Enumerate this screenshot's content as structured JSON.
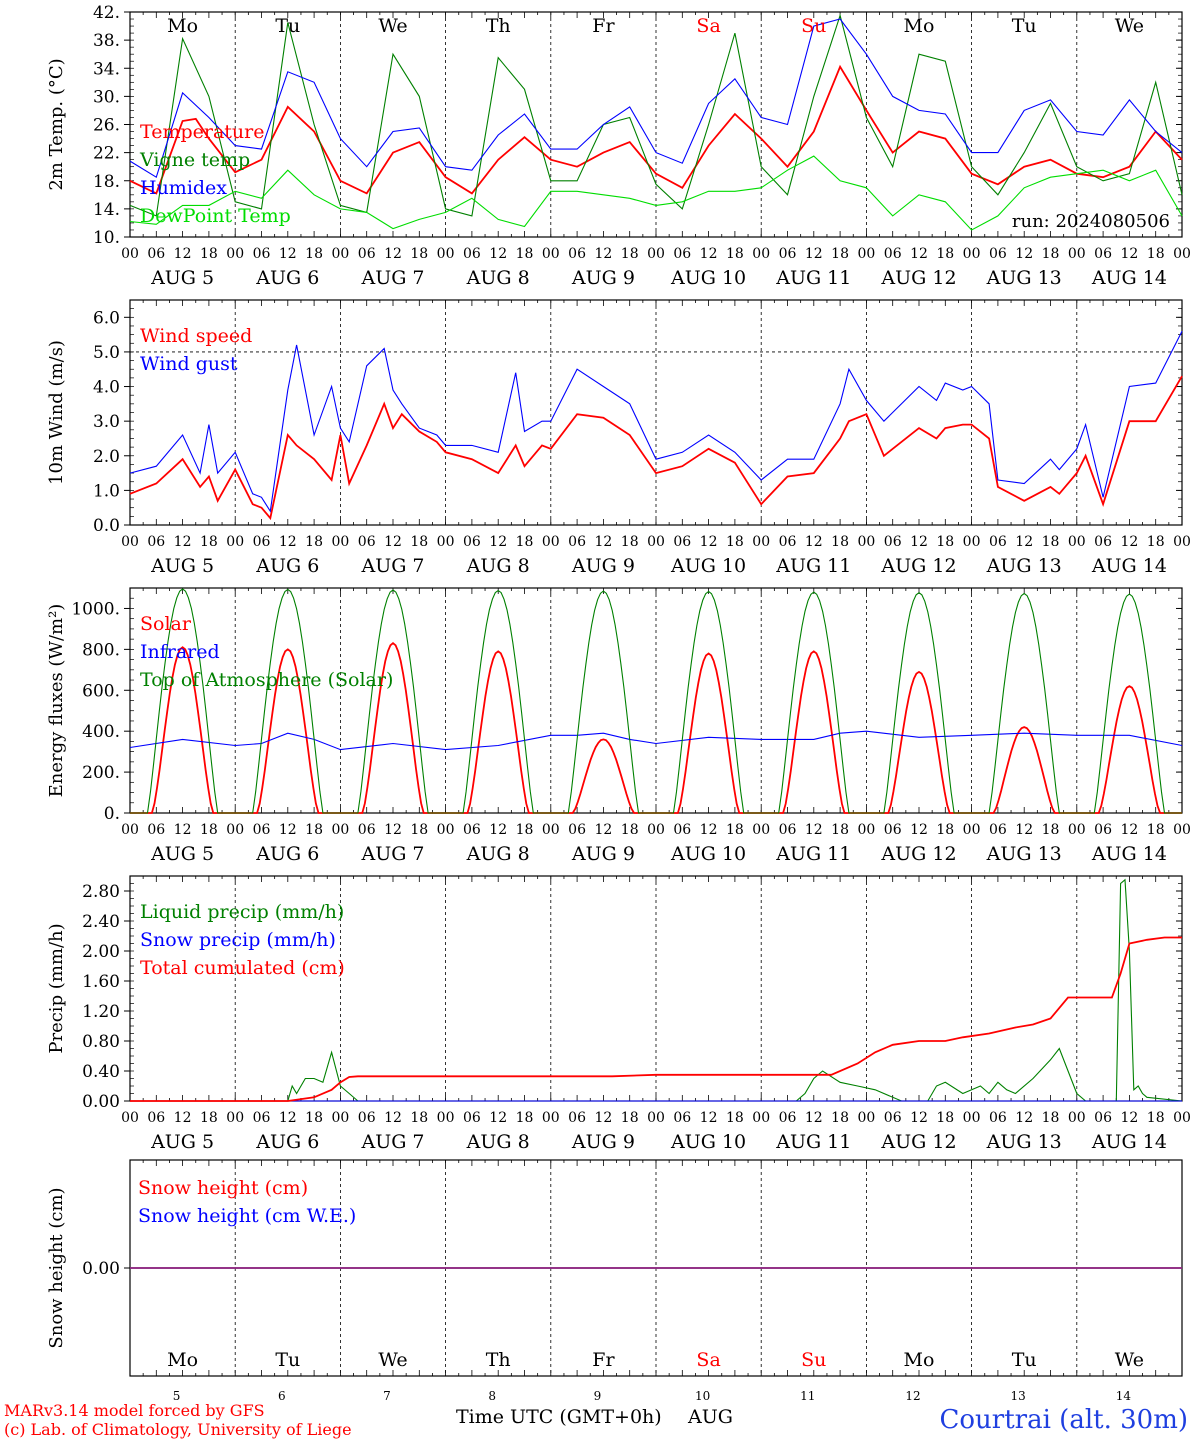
{
  "footer": {
    "model": "MARv3.14 model forced by GFS",
    "copyright": "(c) Lab. of Climatology, University of Liege",
    "xlabel": "Time UTC (GMT+0h)",
    "month": "AUG",
    "station": "Courtrai (alt. 30m)"
  },
  "colors": {
    "red": "#ff0000",
    "green": "#008000",
    "blue": "#0000ff",
    "lime": "#00dd00",
    "purple": "#7030a0",
    "station": "#1f3fe0"
  },
  "days": [
    "Mo",
    "Tu",
    "We",
    "Th",
    "Fr",
    "Sa",
    "Su",
    "Mo",
    "Tu",
    "We"
  ],
  "day_colors": [
    "black",
    "black",
    "black",
    "black",
    "black",
    "red",
    "red",
    "black",
    "black",
    "black"
  ],
  "dates": [
    "AUG 5",
    "AUG 6",
    "AUG 7",
    "AUG 8",
    "AUG 9",
    "AUG 10",
    "AUG 11",
    "AUG 12",
    "AUG 13",
    "AUG 14"
  ],
  "date_numbers": [
    "5",
    "6",
    "7",
    "8",
    "9",
    "10",
    "11",
    "12",
    "13",
    "14"
  ],
  "hour_ticks": [
    "00",
    "06",
    "12",
    "18"
  ],
  "final_tick": "00",
  "chart_data": [
    {
      "type": "line",
      "ylabel": "2m Temp. (°C)",
      "ylim": [
        10,
        42
      ],
      "yticks": [
        "10.",
        "14.",
        "18.",
        "22.",
        "26.",
        "30.",
        "34.",
        "38.",
        "42."
      ],
      "run": "run: 2024080506",
      "x_hours": [
        0,
        240
      ],
      "legend_placement": "left",
      "series": [
        {
          "name": "Temperature",
          "color": "#ff0000",
          "x": [
            0,
            6,
            12,
            15,
            18,
            24,
            30,
            36,
            42,
            48,
            54,
            60,
            66,
            72,
            78,
            84,
            90,
            96,
            102,
            108,
            114,
            120,
            126,
            132,
            138,
            144,
            150,
            156,
            162,
            168,
            174,
            180,
            186,
            192,
            198,
            204,
            210,
            216,
            222,
            228,
            234,
            240
          ],
          "values": [
            18,
            16.2,
            26.5,
            26.8,
            24,
            19.2,
            21,
            28.5,
            25,
            18,
            16.2,
            22,
            23.5,
            18.5,
            16.2,
            21,
            24.2,
            21,
            20,
            22,
            23.5,
            19,
            17,
            23,
            27.5,
            24,
            20,
            25,
            34.2,
            28,
            22,
            25,
            24,
            19,
            17.5,
            20,
            21,
            19,
            18.5,
            20,
            25,
            21
          ]
        },
        {
          "name": "Vigne temp",
          "color": "#008000",
          "x": [
            0,
            6,
            12,
            18,
            24,
            30,
            36,
            42,
            48,
            54,
            60,
            66,
            72,
            78,
            84,
            90,
            96,
            102,
            108,
            114,
            120,
            126,
            132,
            138,
            144,
            150,
            156,
            162,
            168,
            174,
            180,
            186,
            192,
            198,
            204,
            210,
            216,
            222,
            228,
            234,
            240
          ],
          "values": [
            14.5,
            13,
            38.2,
            30,
            15,
            14,
            40.5,
            26,
            14.5,
            13.5,
            36,
            30,
            14,
            13,
            35.5,
            31,
            18,
            18,
            26,
            27,
            17.5,
            14,
            26,
            39,
            20,
            16,
            30,
            41.5,
            27,
            20,
            36,
            35,
            20,
            16,
            22,
            29,
            20,
            18,
            19,
            32,
            16
          ]
        },
        {
          "name": "Humidex",
          "color": "#0000ff",
          "x": [
            0,
            6,
            12,
            18,
            24,
            30,
            36,
            42,
            48,
            54,
            60,
            66,
            72,
            78,
            84,
            90,
            96,
            102,
            108,
            114,
            120,
            126,
            132,
            138,
            144,
            150,
            156,
            162,
            168,
            174,
            180,
            186,
            192,
            198,
            204,
            210,
            216,
            222,
            228,
            234,
            240
          ],
          "values": [
            20.8,
            18.5,
            30.5,
            27,
            23,
            22.5,
            33.5,
            32,
            24,
            20,
            25,
            25.5,
            20,
            19.5,
            24.5,
            27.5,
            22.5,
            22.5,
            26,
            28.5,
            22,
            20.5,
            29,
            32.5,
            27,
            26,
            40,
            41,
            36,
            30,
            28,
            27.5,
            22,
            22,
            28,
            29.5,
            25,
            24.5,
            29.5,
            25,
            22
          ]
        },
        {
          "name": "DewPoint Temp",
          "color": "#00dd00",
          "x": [
            0,
            6,
            12,
            18,
            24,
            30,
            36,
            42,
            48,
            54,
            60,
            66,
            72,
            78,
            84,
            90,
            96,
            102,
            108,
            114,
            120,
            126,
            132,
            138,
            144,
            150,
            156,
            162,
            168,
            174,
            180,
            186,
            192,
            198,
            204,
            210,
            216,
            222,
            228,
            234,
            240
          ],
          "values": [
            12.2,
            11.8,
            14.5,
            14.5,
            16.5,
            15.5,
            19.5,
            16,
            14,
            13.5,
            11.2,
            12.5,
            13.5,
            15.5,
            12.5,
            11.5,
            16.5,
            16.5,
            16,
            15.5,
            14.5,
            15,
            16.5,
            16.5,
            17,
            19.5,
            21.5,
            18,
            17,
            13,
            16,
            15,
            11,
            13,
            17,
            18.5,
            19,
            19.5,
            18,
            19.5,
            13
          ]
        }
      ]
    },
    {
      "type": "line",
      "ylabel": "10m Wind (m/s)",
      "ylim": [
        0,
        6.5
      ],
      "yticks": [
        "0.0",
        "1.0",
        "2.0",
        "3.0",
        "4.0",
        "5.0",
        "6.0"
      ],
      "reference_line": 5.0,
      "x_hours": [
        0,
        240
      ],
      "legend_placement": "top-left",
      "series": [
        {
          "name": "Wind speed",
          "color": "#ff0000",
          "x": [
            0,
            6,
            12,
            16,
            18,
            20,
            24,
            28,
            30,
            32,
            36,
            38,
            42,
            46,
            48,
            50,
            54,
            58,
            60,
            62,
            66,
            70,
            72,
            78,
            84,
            88,
            90,
            94,
            96,
            102,
            108,
            114,
            120,
            126,
            132,
            138,
            144,
            150,
            156,
            162,
            164,
            168,
            172,
            180,
            184,
            186,
            190,
            192,
            196,
            198,
            204,
            210,
            212,
            216,
            218,
            222,
            228,
            234,
            240
          ],
          "values": [
            0.9,
            1.2,
            1.9,
            1.1,
            1.4,
            0.7,
            1.6,
            0.6,
            0.5,
            0.2,
            2.6,
            2.3,
            1.9,
            1.3,
            2.6,
            1.2,
            2.3,
            3.5,
            2.8,
            3.2,
            2.7,
            2.4,
            2.1,
            1.9,
            1.5,
            2.3,
            1.7,
            2.3,
            2.2,
            3.2,
            3.1,
            2.6,
            1.5,
            1.7,
            2.2,
            1.8,
            0.6,
            1.4,
            1.5,
            2.5,
            3.0,
            3.2,
            2.0,
            2.8,
            2.5,
            2.8,
            2.9,
            2.9,
            2.5,
            1.1,
            0.7,
            1.1,
            0.9,
            1.5,
            2.0,
            0.6,
            3.0,
            3.0,
            4.3
          ]
        },
        {
          "name": "Wind gust",
          "color": "#0000ff",
          "x": [
            0,
            6,
            12,
            16,
            18,
            20,
            24,
            28,
            30,
            32,
            36,
            38,
            42,
            46,
            48,
            50,
            54,
            58,
            60,
            62,
            66,
            70,
            72,
            78,
            84,
            88,
            90,
            94,
            96,
            102,
            108,
            114,
            120,
            126,
            132,
            138,
            144,
            150,
            156,
            162,
            164,
            168,
            172,
            180,
            184,
            186,
            190,
            192,
            196,
            198,
            204,
            210,
            212,
            216,
            218,
            222,
            228,
            234,
            240
          ],
          "values": [
            1.5,
            1.7,
            2.6,
            1.5,
            2.9,
            1.5,
            2.1,
            0.9,
            0.8,
            0.4,
            3.9,
            5.2,
            2.6,
            4.0,
            2.8,
            2.4,
            4.6,
            5.1,
            3.9,
            3.5,
            2.8,
            2.6,
            2.3,
            2.3,
            2.1,
            4.4,
            2.7,
            3.0,
            3.0,
            4.5,
            4.0,
            3.5,
            1.9,
            2.1,
            2.6,
            2.1,
            1.3,
            1.9,
            1.9,
            3.5,
            4.5,
            3.6,
            3.0,
            4.0,
            3.6,
            4.1,
            3.9,
            4.0,
            3.5,
            1.3,
            1.2,
            1.9,
            1.6,
            2.2,
            2.9,
            0.8,
            4.0,
            4.1,
            5.6
          ]
        }
      ]
    },
    {
      "type": "line",
      "ylabel": "Energy fluxes (W/m²)",
      "ylim": [
        0,
        1100
      ],
      "yticks": [
        "0.",
        "200.",
        "400.",
        "600.",
        "800.",
        "1000."
      ],
      "x_hours": [
        0,
        240
      ],
      "legend_placement": "top-left",
      "series": [
        {
          "name": "Solar",
          "color": "#ff0000",
          "peaks": [
            810,
            800,
            830,
            790,
            360,
            780,
            790,
            690,
            420,
            620
          ]
        },
        {
          "name": "Infrared",
          "color": "#0000ff",
          "x": [
            0,
            12,
            24,
            30,
            36,
            42,
            48,
            60,
            72,
            84,
            96,
            102,
            108,
            114,
            120,
            132,
            144,
            156,
            162,
            168,
            180,
            192,
            204,
            216,
            228,
            240
          ],
          "values": [
            320,
            360,
            330,
            340,
            390,
            360,
            310,
            340,
            310,
            330,
            380,
            380,
            390,
            360,
            340,
            370,
            360,
            360,
            390,
            400,
            370,
            380,
            390,
            380,
            380,
            330
          ]
        },
        {
          "name": "Top of Atmosphere (Solar)",
          "color": "#008000",
          "peaks": [
            1095,
            1093,
            1090,
            1088,
            1085,
            1083,
            1080,
            1077,
            1073,
            1070
          ]
        }
      ]
    },
    {
      "type": "line",
      "ylabel": "Precip (mm/h)",
      "ylim": [
        0,
        3.0
      ],
      "yticks": [
        "0.00",
        "0.40",
        "0.80",
        "1.20",
        "1.60",
        "2.00",
        "2.40",
        "2.80"
      ],
      "x_hours": [
        0,
        240
      ],
      "legend_placement": "top-left",
      "series": [
        {
          "name": "Liquid precip (mm/h)",
          "color": "#008000",
          "x": [
            0,
            36,
            37,
            38,
            40,
            42,
            44,
            46,
            48,
            50,
            52,
            152,
            154,
            156,
            158,
            162,
            166,
            170,
            176,
            182,
            184,
            186,
            190,
            194,
            196,
            198,
            200,
            202,
            206,
            210,
            212,
            216,
            218,
            225,
            226,
            227,
            228,
            229,
            230,
            231,
            232,
            240
          ],
          "values": [
            0,
            0,
            0.2,
            0.1,
            0.3,
            0.3,
            0.25,
            0.65,
            0.2,
            0.1,
            0,
            0,
            0.1,
            0.3,
            0.4,
            0.25,
            0.2,
            0.15,
            0,
            0,
            0.2,
            0.25,
            0.1,
            0.2,
            0.1,
            0.25,
            0.15,
            0.1,
            0.3,
            0.55,
            0.7,
            0.1,
            0,
            0,
            2.9,
            2.95,
            2.0,
            0.15,
            0.2,
            0.1,
            0.05,
            0
          ]
        },
        {
          "name": "Snow precip (mm/h)",
          "color": "#0000ff",
          "x": [
            0,
            240
          ],
          "values": [
            0,
            0
          ]
        },
        {
          "name": "Total cumulated (cm)",
          "color": "#ff0000",
          "x": [
            0,
            36,
            42,
            46,
            48,
            50,
            52,
            110,
            120,
            160,
            166,
            170,
            174,
            180,
            186,
            190,
            196,
            202,
            206,
            210,
            214,
            216,
            224,
            226,
            228,
            232,
            236,
            240
          ],
          "values": [
            0,
            0,
            0.05,
            0.15,
            0.25,
            0.32,
            0.33,
            0.33,
            0.35,
            0.35,
            0.5,
            0.65,
            0.75,
            0.8,
            0.8,
            0.85,
            0.9,
            0.98,
            1.02,
            1.1,
            1.38,
            1.38,
            1.38,
            1.7,
            2.1,
            2.15,
            2.18,
            2.18
          ]
        }
      ]
    },
    {
      "type": "line",
      "ylabel": "Snow height (cm)",
      "ylim": [
        -1,
        1
      ],
      "yticks": [
        "0.00"
      ],
      "x_hours": [
        0,
        240
      ],
      "legend_placement": "top-left",
      "series": [
        {
          "name": "Snow height (cm)",
          "color": "#ff0000",
          "x": [
            0,
            240
          ],
          "values": [
            0,
            0
          ]
        },
        {
          "name": "Snow height (cm W.E.)",
          "color": "#0000ff",
          "x": [
            0,
            240
          ],
          "values": [
            0,
            0
          ]
        }
      ]
    }
  ]
}
